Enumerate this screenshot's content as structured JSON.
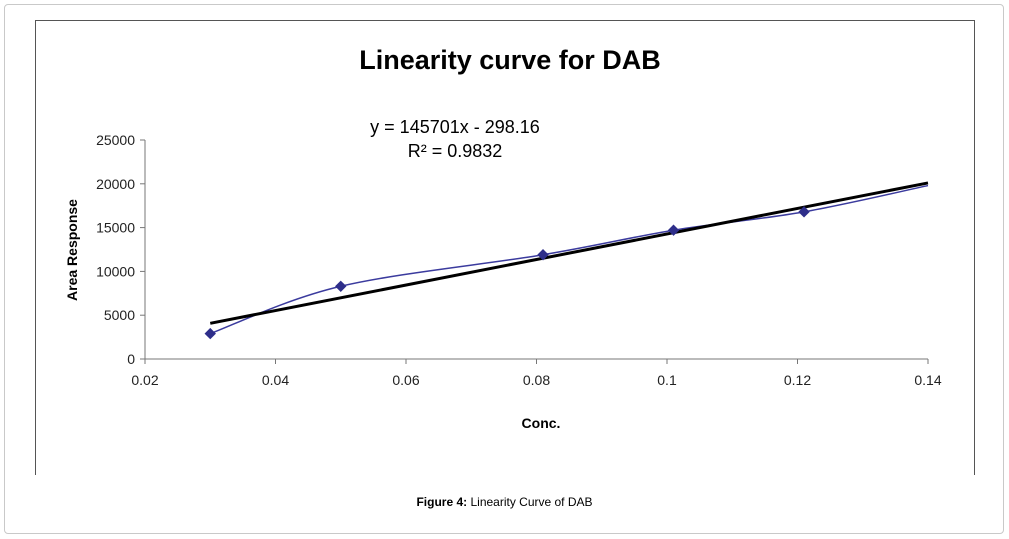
{
  "chart_data": {
    "type": "scatter",
    "title": "Linearity curve for DAB",
    "xlabel": "Conc.",
    "ylabel": "Area Response",
    "xlim": [
      0.02,
      0.14
    ],
    "ylim": [
      0,
      25000
    ],
    "x_ticks": [
      "0.02",
      "0.04",
      "0.06",
      "0.08",
      "0.1",
      "0.12",
      "0.14"
    ],
    "y_ticks": [
      "0",
      "5000",
      "10000",
      "15000",
      "20000",
      "25000"
    ],
    "series": [
      {
        "x": [
          0.03,
          0.05,
          0.081,
          0.101,
          0.121,
          0.14
        ],
        "y": [
          2900,
          8300,
          11900,
          14700,
          16800,
          19800
        ],
        "color": "#2e2e8a",
        "marker": "diamond",
        "line": "smoothed"
      }
    ],
    "trendline": {
      "x": [
        0.03,
        0.14
      ],
      "slope": 145701,
      "intercept": -298.16,
      "color": "#000000"
    },
    "annotations": {
      "equation": "y = 145701x - 298.16",
      "r_squared": "R² = 0.9832"
    },
    "grid": false,
    "legend": "none"
  },
  "caption": {
    "label": "Figure 4:",
    "text": " Linearity Curve of DAB"
  }
}
